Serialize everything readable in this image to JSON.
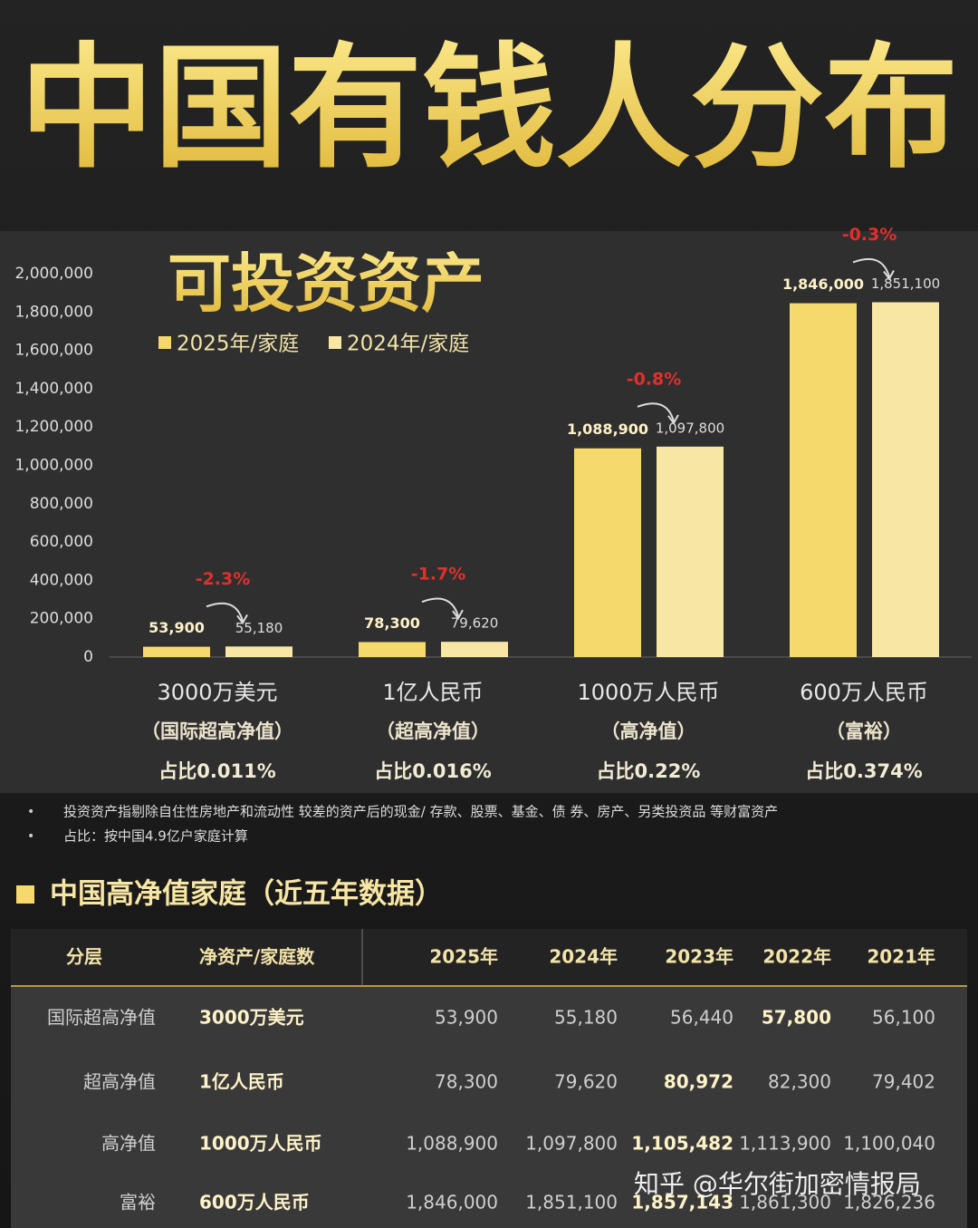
{
  "header": {
    "title": "中国有钱人分布"
  },
  "chart_data": {
    "type": "bar",
    "title": "可投资资产",
    "categories": [
      "3000万美元",
      "1亿人民币",
      "1000万人民币",
      "600万人民币"
    ],
    "category_subtitles": [
      "（国际超高净值）",
      "（超高净值）",
      "（高净值）",
      "（富裕）"
    ],
    "category_shares": [
      "占比0.011%",
      "占比0.016%",
      "占比0.22%",
      "占比0.374%"
    ],
    "series": [
      {
        "name": "2025年/家庭",
        "color": "#f6d96c",
        "values": [
          53900,
          78300,
          1088900,
          1846000
        ],
        "value_labels": [
          "53,900",
          "78,300",
          "1,088,900",
          "1,846,000"
        ]
      },
      {
        "name": "2024年/家庭",
        "color": "#f8e6a4",
        "values": [
          55180,
          79620,
          1097800,
          1851100
        ],
        "value_labels": [
          "55,180",
          "79,620",
          "1,097,800",
          "1,851,100"
        ]
      }
    ],
    "annotations": [
      "-2.3%",
      "-1.7%",
      "-0.8%",
      "-0.3%"
    ],
    "ylim": [
      0,
      2000000
    ],
    "yticks": [
      0,
      {
        "value": 200000,
        "label": "200,000"
      },
      {
        "value": 400000,
        "label": "400,000"
      },
      {
        "value": 600000,
        "label": "600,000"
      },
      {
        "value": 800000,
        "label": "800,000"
      },
      {
        "value": 1000000,
        "label": "1,000,000"
      },
      {
        "value": 1200000,
        "label": "1,200,000"
      },
      {
        "value": 1400000,
        "label": "1,400,000"
      },
      {
        "value": 1600000,
        "label": "1,600,000"
      },
      {
        "value": 1800000,
        "label": "1,800,000"
      },
      {
        "value": 2000000,
        "label": "2,000,000"
      }
    ],
    "legend": "top-left",
    "grid": false
  },
  "notes": [
    "投资资产指剔除自住性房地产和流动性 较差的资产后的现金/ 存款、股票、基金、债 券、房产、另类投资品 等财富资产",
    "占比：按中国4.9亿户家庭计算"
  ],
  "table": {
    "title": "中国高净值家庭（近五年数据）",
    "headers": [
      "分层",
      "净资产/家庭数",
      "2025年",
      "2024年",
      "2023年",
      "2022年",
      "2021年"
    ],
    "rows": [
      [
        "国际超高净值",
        "3000万美元",
        "53,900",
        "55,180",
        "56,440",
        "57,800",
        "56,100"
      ],
      [
        "超高净值",
        "1亿人民币",
        "78,300",
        "79,620",
        "80,972",
        "82,300",
        "79,402"
      ],
      [
        "高净值",
        "1000万人民币",
        "1,088,900",
        "1,097,800",
        "1,105,482",
        "1,113,900",
        "1,100,040"
      ],
      [
        "富裕",
        "600万人民币",
        "1,846,000",
        "1,851,100",
        "1,857,143",
        "1,861,300",
        "1,826,236"
      ]
    ]
  },
  "watermark": "知乎 @华尔街加密情报局"
}
